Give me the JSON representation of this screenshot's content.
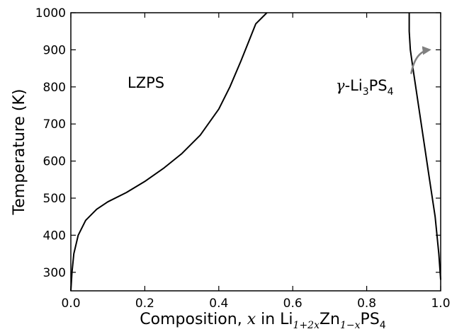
{
  "chart_data": {
    "type": "line",
    "xlabel": {
      "prefix": "Composition, ",
      "var": "x",
      "middle": " in Li",
      "sub1": "1+2x",
      "zn": "Zn",
      "sub2": "1−x",
      "suffix": "PS",
      "sub3": "4"
    },
    "ylabel": "Temperature (K)",
    "xlim": [
      0.0,
      1.0
    ],
    "ylim": [
      250,
      1000
    ],
    "xticks": [
      "0.0",
      "0.2",
      "0.4",
      "0.6",
      "0.8",
      "1.0"
    ],
    "xtick_values": [
      0.0,
      0.2,
      0.4,
      0.6,
      0.8,
      1.0
    ],
    "yticks": [
      "300",
      "400",
      "500",
      "600",
      "700",
      "800",
      "900",
      "1000"
    ],
    "ytick_values": [
      300,
      400,
      500,
      600,
      700,
      800,
      900,
      1000
    ],
    "grid": false,
    "regions": {
      "lzps": "LZPS",
      "gamma": {
        "greek": "γ",
        "dash": "-Li",
        "sub1": "3",
        "mid": "PS",
        "sub2": "4"
      }
    },
    "series": [
      {
        "color": "#000000",
        "x": [
          0.0,
          0.003,
          0.008,
          0.02,
          0.04,
          0.07,
          0.1,
          0.15,
          0.2,
          0.25,
          0.3,
          0.35,
          0.4,
          0.43,
          0.46,
          0.48,
          0.5,
          0.53
        ],
        "y": [
          250,
          300,
          350,
          400,
          440,
          470,
          490,
          515,
          545,
          580,
          620,
          670,
          740,
          800,
          870,
          920,
          970,
          1000
        ]
      },
      {
        "color": "#000000",
        "x": [
          0.915,
          0.915,
          0.918,
          0.925,
          0.94,
          0.955,
          0.97,
          0.985,
          0.995,
          1.0
        ],
        "y": [
          1000,
          950,
          900,
          850,
          750,
          650,
          550,
          450,
          350,
          280
        ]
      }
    ],
    "annotation_arrow": {
      "color": "#808080",
      "from": [
        0.92,
        835
      ],
      "to": [
        0.97,
        900
      ]
    }
  }
}
